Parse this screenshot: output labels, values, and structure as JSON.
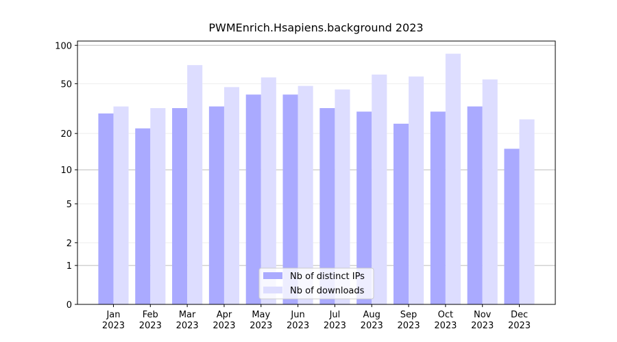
{
  "chart_data": {
    "type": "bar",
    "title": "PWMEnrich.Hsapiens.background 2023",
    "categories": [
      "Jan\n2023",
      "Feb\n2023",
      "Mar\n2023",
      "Apr\n2023",
      "May\n2023",
      "Jun\n2023",
      "Jul\n2023",
      "Aug\n2023",
      "Sep\n2023",
      "Oct\n2023",
      "Nov\n2023",
      "Dec\n2023"
    ],
    "series": [
      {
        "name": "Nb of distinct IPs",
        "color": "#aaaaff",
        "values": [
          29,
          22,
          32,
          33,
          41,
          41,
          32,
          30,
          24,
          30,
          33,
          15
        ]
      },
      {
        "name": "Nb of downloads",
        "color": "#ddddff",
        "values": [
          33,
          32,
          70,
          47,
          56,
          48,
          45,
          59,
          57,
          86,
          54,
          26
        ]
      }
    ],
    "yscale": "log1p",
    "ylim": [
      0,
      108
    ],
    "yticks": [
      0,
      1,
      2,
      5,
      10,
      20,
      50,
      100
    ],
    "grid": true,
    "legend": "bottom"
  }
}
